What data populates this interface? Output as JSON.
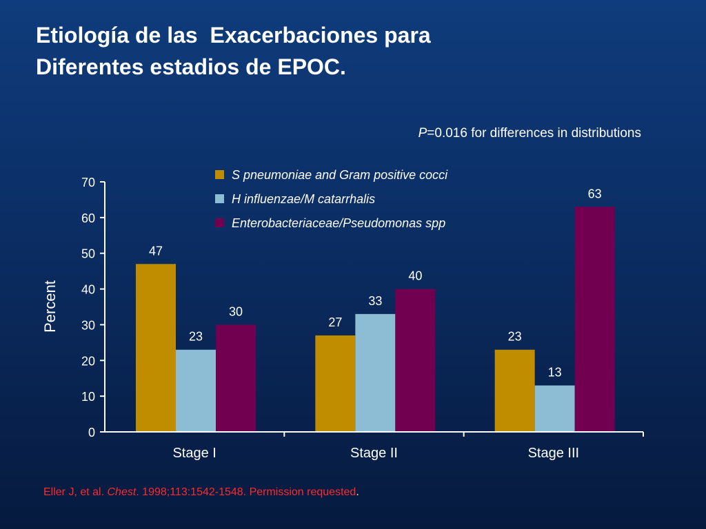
{
  "slide": {
    "title_line1": "Etiología de las  Exacerbaciones para",
    "title_line2": "Diferentes estadios de EPOC.",
    "note_italic": "P",
    "note_rest": "=0.016 for differences in distributions",
    "citation": {
      "authors": "Eller J, et al. ",
      "journal": "Chest",
      "rest": ". 1998;113:1542-1548. Permission requested",
      "end": "."
    }
  },
  "colors": {
    "background_top": "#0f3c7c",
    "background_bottom": "#061a3e",
    "series1": "#c08c00",
    "series2": "#8dbcd5",
    "series3": "#720050",
    "citation": "#ff2a2a"
  },
  "chart_data": {
    "type": "bar",
    "categories": [
      "Stage I",
      "Stage II",
      "Stage III"
    ],
    "series": [
      {
        "name": "S pneumoniae and Gram positive cocci",
        "values": [
          47,
          27,
          23
        ],
        "color": "#c08c00"
      },
      {
        "name": "H influenzae/M catarrhalis",
        "values": [
          23,
          33,
          13
        ],
        "color": "#8dbcd5"
      },
      {
        "name": "Enterobacteriaceae/Pseudomonas spp",
        "values": [
          30,
          40,
          63
        ],
        "color": "#720050"
      }
    ],
    "ylabel": "Percent",
    "xlabel": "",
    "ylim": [
      0,
      70
    ],
    "yticks": [
      0,
      10,
      20,
      30,
      40,
      50,
      60,
      70
    ],
    "grid": false,
    "legend": "top-center",
    "data_labels": true
  }
}
